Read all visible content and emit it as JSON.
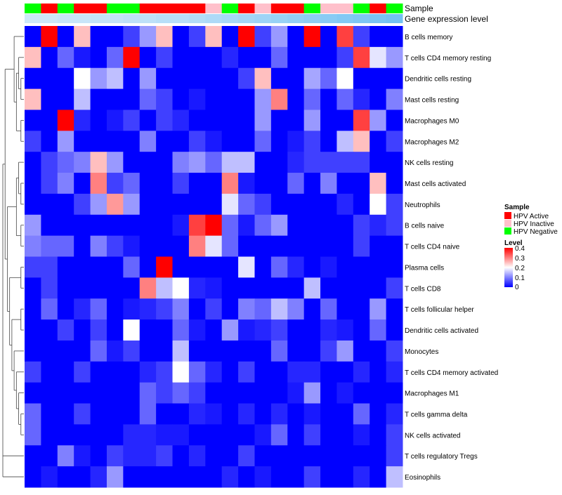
{
  "chart_data": {
    "type": "heatmap",
    "annotation_labels": [
      "Sample",
      "Gene expression level"
    ],
    "samples": [
      "HPV Negative",
      "HPV Active",
      "HPV Negative",
      "HPV Active",
      "HPV Active",
      "HPV Negative",
      "HPV Negative",
      "HPV Active",
      "HPV Active",
      "HPV Active",
      "HPV Active",
      "HPV Inactive",
      "HPV Negative",
      "HPV Active",
      "HPV Inactive",
      "HPV Active",
      "HPV Active",
      "HPV Negative",
      "HPV Inactive",
      "HPV Inactive",
      "HPV Negative",
      "HPV Active",
      "HPV Negative"
    ],
    "gene_expression": [
      0.1,
      0.1,
      0.15,
      0.15,
      0.2,
      0.2,
      0.25,
      0.25,
      0.3,
      0.3,
      0.35,
      0.4,
      0.45,
      0.5,
      0.55,
      0.6,
      0.65,
      0.7,
      0.75,
      0.8,
      0.85,
      0.9,
      0.95
    ],
    "rows": [
      "B cells memory",
      "T cells CD4 memory resting",
      "Dendritic cells resting",
      "Mast cells resting",
      "Macrophages M0",
      "Macrophages M2",
      "NK cells resting",
      "Mast cells activated",
      "Neutrophils",
      "B cells naive",
      "T cells CD4 naive",
      "Plasma cells",
      "T cells CD8",
      "T cells follicular helper",
      "Dendritic cells activated",
      "Monocytes",
      "T cells CD4 memory activated",
      "Macrophages M1",
      "T cells gamma delta",
      "NK cells activated",
      "T cells regulatory  Tregs",
      "Eosinophils"
    ],
    "values": [
      [
        0,
        0.4,
        0,
        0.25,
        0,
        0,
        0.05,
        0.12,
        0.25,
        0,
        0.05,
        0.25,
        0,
        0.4,
        0.05,
        0.12,
        0,
        0.4,
        0,
        0.35,
        0.05,
        0,
        0
      ],
      [
        0.25,
        0,
        0.08,
        0.02,
        0,
        0.08,
        0.4,
        0,
        0.05,
        0,
        0,
        0,
        0.03,
        0,
        0,
        0.08,
        0,
        0,
        0,
        0.05,
        0.35,
        0.18,
        0.12
      ],
      [
        0,
        0,
        0,
        0.2,
        0.12,
        0.15,
        0,
        0.12,
        0,
        0,
        0,
        0,
        0,
        0.05,
        0.25,
        0,
        0,
        0.13,
        0.08,
        0.2,
        0,
        0,
        0
      ],
      [
        0.25,
        0,
        0,
        0.15,
        0,
        0,
        0,
        0.08,
        0.05,
        0,
        0.02,
        0,
        0,
        0,
        0.12,
        0.3,
        0,
        0.08,
        0,
        0.08,
        0.03,
        0,
        0.1
      ],
      [
        0,
        0,
        0.4,
        0.03,
        0,
        0.02,
        0.05,
        0,
        0.05,
        0.03,
        0,
        0,
        0,
        0,
        0.12,
        0,
        0,
        0.12,
        0,
        0,
        0.35,
        0.12,
        0
      ],
      [
        0.05,
        0,
        0.12,
        0,
        0,
        0,
        0,
        0.1,
        0,
        0,
        0.05,
        0.02,
        0,
        0,
        0.08,
        0,
        0.02,
        0.05,
        0,
        0.15,
        0.25,
        0,
        0.05
      ],
      [
        0,
        0.05,
        0.08,
        0.1,
        0.25,
        0.12,
        0,
        0,
        0,
        0.1,
        0.12,
        0.08,
        0.15,
        0.15,
        0,
        0,
        0.03,
        0.05,
        0.05,
        0.05,
        0.05,
        0,
        0
      ],
      [
        0,
        0.05,
        0.1,
        0,
        0.3,
        0.05,
        0.08,
        0,
        0,
        0.05,
        0,
        0,
        0.3,
        0.02,
        0,
        0,
        0.08,
        0,
        0.1,
        0,
        0,
        0.25,
        0
      ],
      [
        0,
        0,
        0,
        0.05,
        0.12,
        0.28,
        0.12,
        0,
        0,
        0,
        0,
        0,
        0.18,
        0.08,
        0.05,
        0,
        0,
        0,
        0,
        0.03,
        0,
        0.2,
        0.05
      ],
      [
        0.12,
        0,
        0,
        0,
        0,
        0,
        0,
        0,
        0,
        0.02,
        0.35,
        0.4,
        0.08,
        0.02,
        0.08,
        0.12,
        0,
        0,
        0,
        0,
        0.05,
        0.03,
        0.05
      ],
      [
        0.1,
        0.08,
        0.08,
        0,
        0.1,
        0.05,
        0.02,
        0,
        0,
        0,
        0.3,
        0.18,
        0.08,
        0,
        0,
        0,
        0,
        0,
        0,
        0,
        0.05,
        0,
        0
      ],
      [
        0.05,
        0.05,
        0,
        0,
        0,
        0,
        0.08,
        0,
        0.4,
        0,
        0,
        0,
        0,
        0.18,
        0,
        0.08,
        0.03,
        0,
        0.02,
        0,
        0,
        0,
        0
      ],
      [
        0,
        0.05,
        0,
        0,
        0,
        0,
        0,
        0.3,
        0.15,
        0.2,
        0.03,
        0.02,
        0,
        0,
        0,
        0,
        0,
        0.15,
        0,
        0,
        0,
        0,
        0.05
      ],
      [
        0,
        0.08,
        0,
        0.03,
        0.08,
        0,
        0.02,
        0.03,
        0.05,
        0.1,
        0,
        0.05,
        0,
        0.1,
        0.08,
        0.15,
        0.1,
        0,
        0.08,
        0,
        0,
        0.12,
        0
      ],
      [
        0,
        0,
        0.05,
        0,
        0.05,
        0,
        0.2,
        0,
        0,
        0.08,
        0.02,
        0,
        0.12,
        0.02,
        0.03,
        0.05,
        0,
        0,
        0.03,
        0.02,
        0,
        0.08,
        0
      ],
      [
        0,
        0,
        0,
        0,
        0.08,
        0.02,
        0.05,
        0,
        0,
        0.15,
        0,
        0,
        0,
        0,
        0,
        0.08,
        0,
        0,
        0.05,
        0.12,
        0,
        0,
        0.05
      ],
      [
        0.05,
        0,
        0,
        0.05,
        0,
        0,
        0,
        0.03,
        0.05,
        0.2,
        0.08,
        0.03,
        0,
        0.05,
        0,
        0,
        0.03,
        0.03,
        0,
        0,
        0.03,
        0,
        0.03
      ],
      [
        0,
        0,
        0,
        0,
        0,
        0,
        0,
        0.08,
        0.05,
        0.08,
        0.05,
        0,
        0,
        0,
        0,
        0,
        0.02,
        0.12,
        0,
        0.02,
        0,
        0,
        0
      ],
      [
        0.08,
        0,
        0,
        0.05,
        0,
        0,
        0,
        0.08,
        0,
        0,
        0.03,
        0.02,
        0,
        0.03,
        0,
        0.03,
        0,
        0.02,
        0,
        0,
        0.08,
        0,
        0.03
      ],
      [
        0.08,
        0,
        0,
        0,
        0,
        0,
        0.03,
        0.03,
        0.02,
        0.02,
        0,
        0,
        0,
        0,
        0.02,
        0.08,
        0,
        0.05,
        0,
        0,
        0.02,
        0,
        0.05
      ],
      [
        0,
        0,
        0.1,
        0.02,
        0,
        0.05,
        0.03,
        0.03,
        0.05,
        0,
        0.03,
        0,
        0,
        0.05,
        0,
        0,
        0,
        0,
        0,
        0,
        0,
        0,
        0.05
      ],
      [
        0,
        0.02,
        0,
        0,
        0.03,
        0.12,
        0,
        0,
        0,
        0,
        0,
        0,
        0.03,
        0,
        0.02,
        0,
        0,
        0.05,
        0,
        0,
        0.03,
        0,
        0.15
      ]
    ],
    "legend_sample": {
      "title": "Sample",
      "items": [
        {
          "label": "HPV Active",
          "color": "#ff0000"
        },
        {
          "label": "HPV Inactive",
          "color": "#ffc0cb"
        },
        {
          "label": "HPV Negative",
          "color": "#00ff00"
        }
      ]
    },
    "legend_level": {
      "title": "Level",
      "ticks": [
        "0.4",
        "0.3",
        "0.2",
        "0.1",
        "0"
      ],
      "range": [
        0,
        0.4
      ]
    },
    "colors": {
      "low": "#0000ff",
      "mid": "#ffffff",
      "high": "#ff0000",
      "expr_low": "#d8ecfa",
      "expr_high": "#6ec0f2",
      "dendrogram": "#444444"
    }
  }
}
